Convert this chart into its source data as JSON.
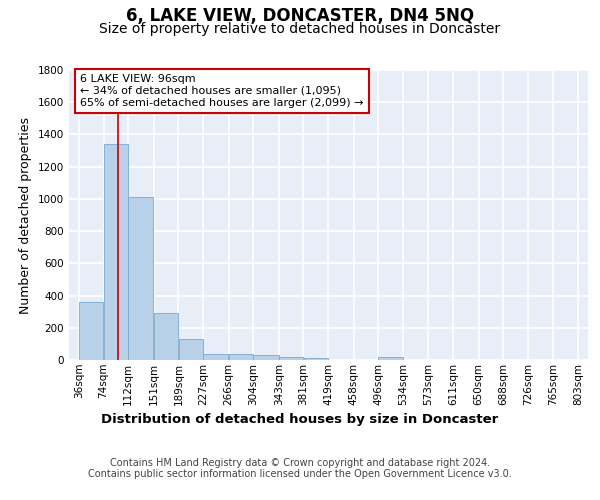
{
  "title": "6, LAKE VIEW, DONCASTER, DN4 5NQ",
  "subtitle": "Size of property relative to detached houses in Doncaster",
  "xlabel": "Distribution of detached houses by size in Doncaster",
  "ylabel": "Number of detached properties",
  "bin_edges": [
    36,
    74,
    112,
    151,
    189,
    227,
    266,
    304,
    343,
    381,
    419,
    458,
    496,
    534,
    573,
    611,
    650,
    688,
    726,
    765,
    803
  ],
  "bar_heights": [
    360,
    1340,
    1010,
    290,
    130,
    40,
    35,
    30,
    20,
    15,
    0,
    0,
    20,
    0,
    0,
    0,
    0,
    0,
    0,
    0
  ],
  "bar_color": "#b8d0e8",
  "bar_edge_color": "#7aaad0",
  "bg_color": "#e8eef8",
  "grid_color": "#ffffff",
  "property_line_x": 96,
  "property_line_color": "#cc0000",
  "annotation_text": "6 LAKE VIEW: 96sqm\n← 34% of detached houses are smaller (1,095)\n65% of semi-detached houses are larger (2,099) →",
  "annotation_box_color": "#ffffff",
  "annotation_box_edge_color": "#cc0000",
  "ylim": [
    0,
    1800
  ],
  "yticks": [
    0,
    200,
    400,
    600,
    800,
    1000,
    1200,
    1400,
    1600,
    1800
  ],
  "footer_text": "Contains HM Land Registry data © Crown copyright and database right 2024.\nContains public sector information licensed under the Open Government Licence v3.0.",
  "title_fontsize": 12,
  "subtitle_fontsize": 10,
  "xlabel_fontsize": 9.5,
  "ylabel_fontsize": 9,
  "annotation_fontsize": 8,
  "footer_fontsize": 7,
  "tick_fontsize": 7.5
}
